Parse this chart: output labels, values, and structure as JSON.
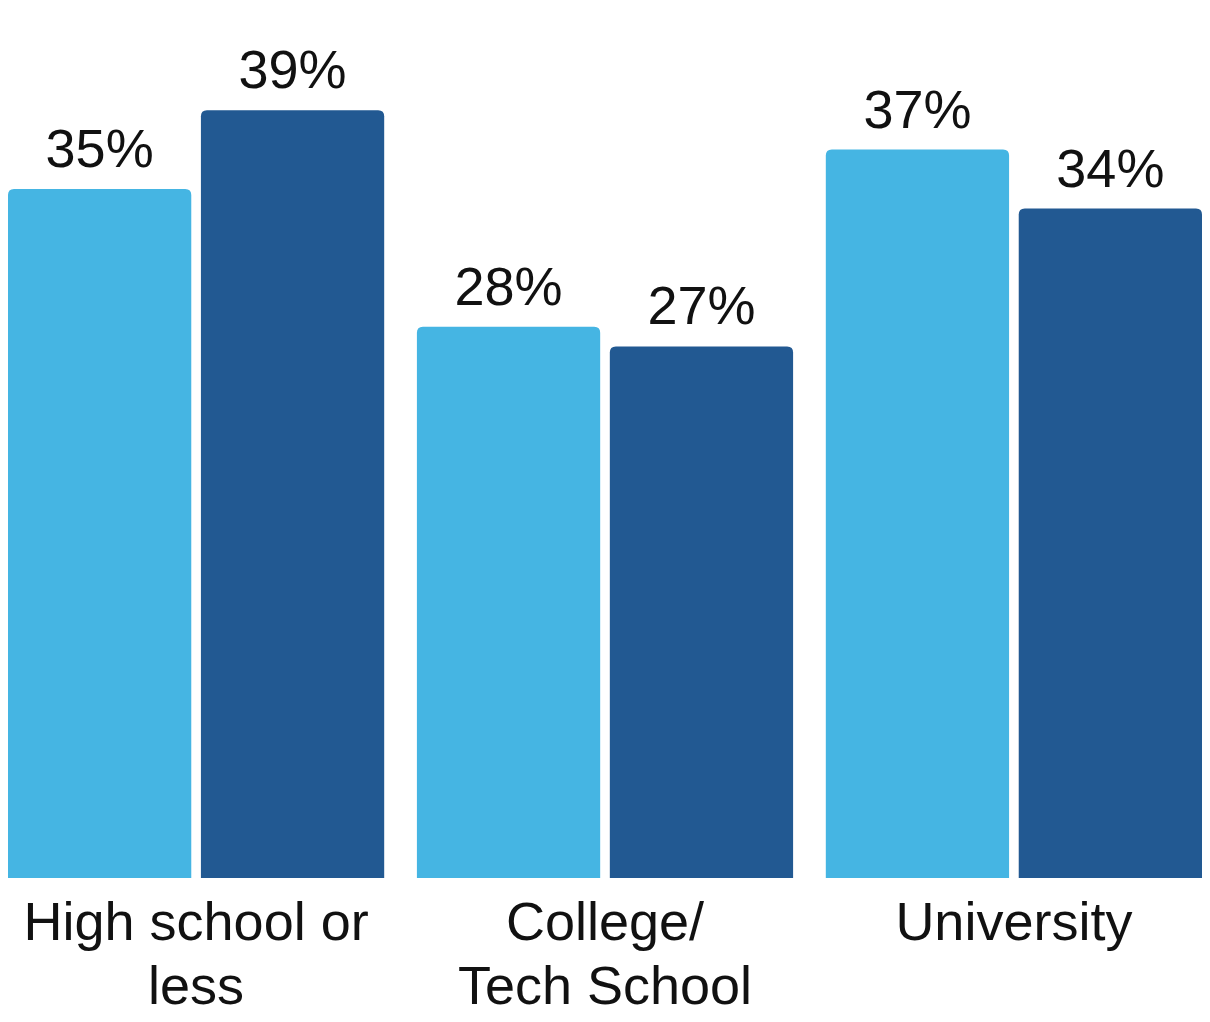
{
  "chart_data": {
    "type": "bar",
    "categories": [
      "High school or less",
      "College/ Tech School",
      "University"
    ],
    "series": [
      {
        "color": "#45b5e3",
        "values": [
          35,
          28,
          37
        ],
        "value_labels": [
          "35%",
          "28%",
          "37%"
        ]
      },
      {
        "color": "#225992",
        "values": [
          39,
          27,
          34
        ],
        "value_labels": [
          "39%",
          "27%",
          "34%"
        ]
      }
    ]
  }
}
